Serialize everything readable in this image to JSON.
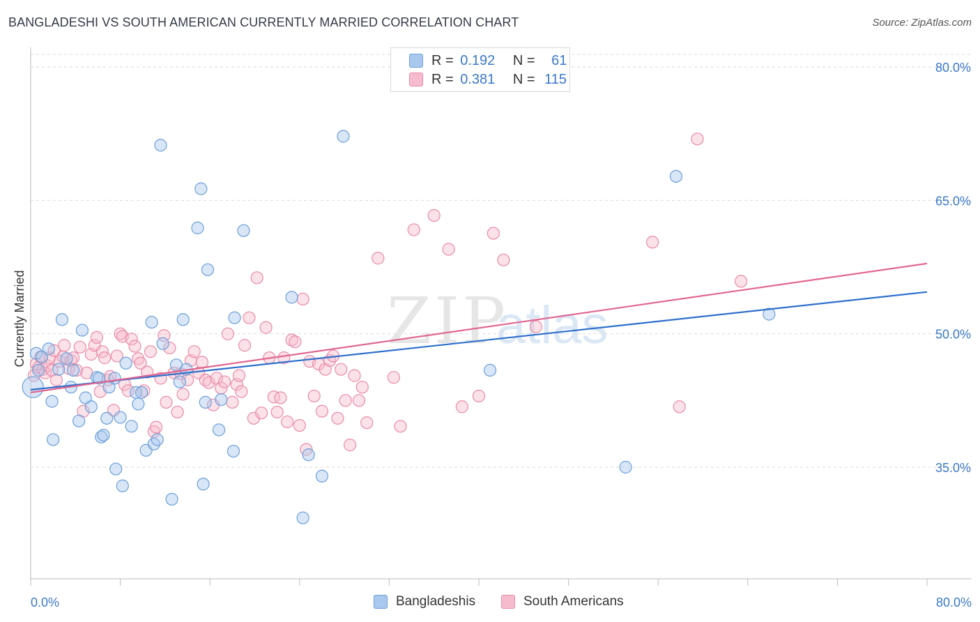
{
  "header": {
    "title": "BANGLADESHI VS SOUTH AMERICAN CURRENTLY MARRIED CORRELATION CHART",
    "source": "Source: ZipAtlas.com"
  },
  "legend": {
    "r_label": "R =",
    "n_label": "N =",
    "rows": [
      {
        "r": "0.192",
        "n": "61"
      },
      {
        "r": "0.381",
        "n": "115"
      }
    ]
  },
  "watermark": {
    "zip": "ZIP",
    "atlas": "atlas"
  },
  "colors": {
    "blue_fill": "#a8c8ee",
    "blue_stroke": "#6a9fd8",
    "blue_line": "#2d6fcc",
    "pink_fill": "#f6bccd",
    "pink_stroke": "#e98aa8",
    "pink_line": "#e06690",
    "tick_label": "#3a78c9",
    "grid": "#d9d9d9"
  },
  "chart_data": {
    "type": "scatter",
    "title": "BANGLADESHI VS SOUTH AMERICAN CURRENTLY MARRIED CORRELATION CHART",
    "ylabel": "Currently Married",
    "xlim": [
      0,
      80
    ],
    "ylim": [
      20,
      83
    ],
    "x_tick_labels": [
      "0.0%",
      "80.0%"
    ],
    "y_ticks": [
      35,
      50,
      65,
      80
    ],
    "y_tick_labels": [
      "35.0%",
      "50.0%",
      "65.0%",
      "80.0%"
    ],
    "series": [
      {
        "name": "Bangladeshis",
        "R": 0.192,
        "N": 61,
        "trend": {
          "x": [
            0,
            80
          ],
          "y": [
            43.7,
            54.7
          ]
        },
        "points": [
          [
            0.2,
            44.0
          ],
          [
            0.5,
            47.8
          ],
          [
            0.7,
            45.9
          ],
          [
            1.0,
            47.4
          ],
          [
            1.6,
            48.3
          ],
          [
            1.9,
            42.4
          ],
          [
            2.0,
            38.1
          ],
          [
            2.8,
            51.6
          ],
          [
            3.2,
            47.2
          ],
          [
            3.6,
            44.0
          ],
          [
            3.8,
            45.9
          ],
          [
            4.3,
            40.2
          ],
          [
            4.6,
            50.4
          ],
          [
            4.9,
            42.8
          ],
          [
            5.4,
            41.8
          ],
          [
            5.9,
            45.1
          ],
          [
            6.3,
            38.4
          ],
          [
            6.5,
            38.6
          ],
          [
            6.8,
            40.5
          ],
          [
            7.0,
            44.0
          ],
          [
            7.5,
            45.0
          ],
          [
            7.6,
            34.8
          ],
          [
            8.0,
            40.6
          ],
          [
            8.2,
            32.9
          ],
          [
            8.5,
            46.7
          ],
          [
            9.0,
            39.6
          ],
          [
            9.4,
            43.4
          ],
          [
            9.6,
            42.1
          ],
          [
            9.9,
            43.4
          ],
          [
            10.3,
            36.9
          ],
          [
            10.8,
            51.3
          ],
          [
            11.0,
            37.6
          ],
          [
            11.3,
            38.1
          ],
          [
            11.6,
            71.2
          ],
          [
            11.8,
            48.9
          ],
          [
            12.6,
            31.4
          ],
          [
            13.0,
            46.5
          ],
          [
            13.3,
            44.6
          ],
          [
            13.6,
            51.6
          ],
          [
            13.9,
            46.0
          ],
          [
            14.9,
            61.9
          ],
          [
            15.2,
            66.3
          ],
          [
            15.4,
            33.1
          ],
          [
            15.6,
            42.3
          ],
          [
            15.8,
            57.2
          ],
          [
            16.8,
            39.2
          ],
          [
            17.0,
            42.6
          ],
          [
            18.1,
            36.8
          ],
          [
            18.2,
            51.8
          ],
          [
            19.0,
            61.6
          ],
          [
            23.3,
            54.1
          ],
          [
            24.8,
            36.4
          ],
          [
            26.0,
            34.0
          ],
          [
            24.3,
            29.3
          ],
          [
            27.9,
            72.2
          ],
          [
            41.0,
            45.9
          ],
          [
            53.1,
            35.0
          ],
          [
            57.6,
            67.7
          ],
          [
            65.9,
            52.2
          ],
          [
            2.5,
            46.0
          ],
          [
            6.1,
            45.0
          ]
        ]
      },
      {
        "name": "South Americans",
        "R": 0.381,
        "N": 115,
        "trend": {
          "x": [
            0,
            80
          ],
          "y": [
            43.4,
            57.9
          ]
        },
        "points": [
          [
            0.3,
            45.3
          ],
          [
            0.5,
            46.6
          ],
          [
            0.7,
            46.2
          ],
          [
            0.9,
            47.4
          ],
          [
            1.1,
            46.0
          ],
          [
            1.3,
            45.6
          ],
          [
            1.5,
            46.4
          ],
          [
            1.7,
            47.3
          ],
          [
            1.9,
            45.9
          ],
          [
            2.1,
            48.1
          ],
          [
            2.3,
            44.8
          ],
          [
            2.6,
            46.9
          ],
          [
            2.9,
            47.4
          ],
          [
            3.0,
            48.7
          ],
          [
            3.4,
            46.1
          ],
          [
            3.6,
            47.0
          ],
          [
            3.8,
            47.3
          ],
          [
            4.1,
            45.9
          ],
          [
            4.4,
            48.5
          ],
          [
            4.7,
            41.3
          ],
          [
            5.0,
            45.6
          ],
          [
            5.4,
            47.7
          ],
          [
            5.7,
            48.7
          ],
          [
            5.9,
            49.6
          ],
          [
            6.2,
            43.5
          ],
          [
            6.4,
            48.0
          ],
          [
            6.6,
            47.3
          ],
          [
            6.9,
            44.8
          ],
          [
            7.1,
            45.2
          ],
          [
            7.4,
            41.4
          ],
          [
            7.7,
            47.5
          ],
          [
            8.0,
            50.0
          ],
          [
            8.2,
            49.7
          ],
          [
            8.4,
            44.3
          ],
          [
            8.7,
            43.6
          ],
          [
            9.0,
            49.4
          ],
          [
            9.3,
            48.6
          ],
          [
            9.6,
            47.2
          ],
          [
            9.8,
            46.7
          ],
          [
            10.1,
            43.6
          ],
          [
            10.4,
            45.7
          ],
          [
            10.7,
            48.0
          ],
          [
            11.0,
            39.0
          ],
          [
            11.2,
            39.5
          ],
          [
            11.6,
            45.0
          ],
          [
            11.9,
            49.8
          ],
          [
            12.1,
            42.3
          ],
          [
            12.4,
            48.4
          ],
          [
            12.8,
            45.6
          ],
          [
            13.1,
            41.2
          ],
          [
            13.4,
            45.5
          ],
          [
            13.6,
            43.2
          ],
          [
            14.0,
            44.8
          ],
          [
            14.3,
            47.0
          ],
          [
            14.6,
            48.0
          ],
          [
            15.0,
            45.6
          ],
          [
            15.3,
            46.8
          ],
          [
            15.6,
            44.8
          ],
          [
            15.9,
            44.5
          ],
          [
            16.3,
            42.0
          ],
          [
            16.6,
            45.0
          ],
          [
            17.0,
            43.9
          ],
          [
            17.3,
            44.6
          ],
          [
            17.6,
            50.0
          ],
          [
            18.0,
            42.3
          ],
          [
            18.4,
            44.3
          ],
          [
            18.6,
            45.3
          ],
          [
            18.8,
            43.5
          ],
          [
            19.1,
            48.7
          ],
          [
            19.5,
            51.8
          ],
          [
            19.9,
            40.5
          ],
          [
            20.2,
            56.3
          ],
          [
            20.6,
            41.1
          ],
          [
            21.0,
            50.7
          ],
          [
            21.3,
            47.3
          ],
          [
            21.7,
            42.9
          ],
          [
            22.0,
            41.2
          ],
          [
            22.3,
            42.8
          ],
          [
            22.6,
            47.3
          ],
          [
            22.9,
            40.1
          ],
          [
            23.3,
            49.3
          ],
          [
            23.6,
            49.1
          ],
          [
            24.0,
            39.7
          ],
          [
            24.3,
            53.9
          ],
          [
            24.6,
            37.0
          ],
          [
            24.9,
            46.9
          ],
          [
            25.3,
            43.0
          ],
          [
            25.7,
            46.6
          ],
          [
            26.0,
            41.3
          ],
          [
            26.3,
            46.0
          ],
          [
            26.7,
            47.0
          ],
          [
            27.0,
            47.5
          ],
          [
            27.4,
            40.5
          ],
          [
            27.7,
            46.0
          ],
          [
            28.1,
            42.5
          ],
          [
            28.5,
            37.5
          ],
          [
            28.9,
            45.3
          ],
          [
            29.3,
            42.5
          ],
          [
            29.6,
            44.0
          ],
          [
            30.0,
            40.0
          ],
          [
            31.0,
            58.5
          ],
          [
            32.4,
            45.1
          ],
          [
            33.0,
            39.6
          ],
          [
            34.2,
            61.7
          ],
          [
            36.0,
            63.3
          ],
          [
            37.3,
            59.5
          ],
          [
            38.5,
            41.8
          ],
          [
            40.0,
            43.0
          ],
          [
            41.3,
            61.3
          ],
          [
            42.2,
            58.3
          ],
          [
            45.1,
            50.8
          ],
          [
            55.5,
            60.3
          ],
          [
            57.9,
            41.8
          ],
          [
            59.5,
            71.9
          ],
          [
            63.4,
            55.9
          ]
        ]
      }
    ]
  },
  "bottom_legend": [
    "Bangladeshis",
    "South Americans"
  ]
}
